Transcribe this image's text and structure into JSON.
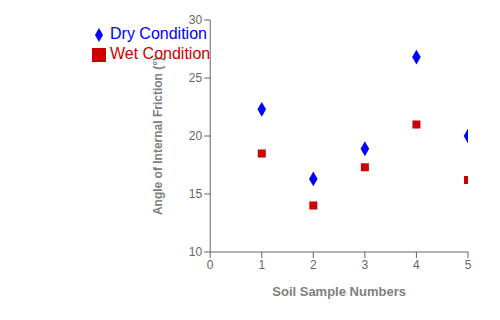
{
  "chart_data": {
    "type": "scatter",
    "xlabel": "Soil Sample Numbers",
    "ylabel": "Angle of Internal Friction (°)",
    "x": [
      1,
      2,
      3,
      4,
      5
    ],
    "xlim": [
      0,
      5
    ],
    "ylim": [
      10,
      30
    ],
    "xticks": [
      0,
      1,
      2,
      3,
      4,
      5
    ],
    "yticks": [
      10,
      15,
      20,
      25,
      30
    ],
    "grid": false,
    "legend": "upper left",
    "series": [
      {
        "name": "Dry Condition",
        "color": "#0000FF",
        "marker": "diamond",
        "values": [
          22.3,
          16.3,
          18.9,
          26.8,
          20.0
        ]
      },
      {
        "name": "Wet Condition",
        "color": "#CC0000",
        "marker": "square",
        "values": [
          18.5,
          14.0,
          17.3,
          21.0,
          16.2
        ]
      }
    ]
  }
}
